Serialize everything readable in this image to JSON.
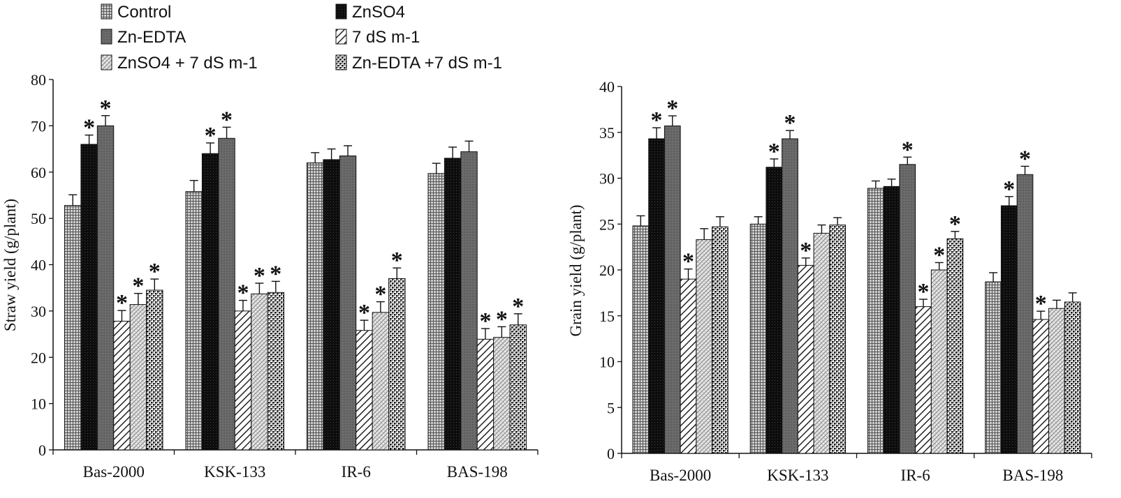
{
  "legend": {
    "items": [
      {
        "label": "Control",
        "pattern": "p-control"
      },
      {
        "label": "ZnSO4",
        "pattern": "p-znso4"
      },
      {
        "label": "Zn-EDTA",
        "pattern": "p-znedta"
      },
      {
        "label": "7 dS m-1",
        "pattern": "p-salt"
      },
      {
        "label": "ZnSO4 + 7 dS m-1",
        "pattern": "p-znso4salt"
      },
      {
        "label": "Zn-EDTA +7 dS m-1",
        "pattern": "p-znedtasalt"
      }
    ]
  },
  "significance_marker": "*",
  "chart_data": [
    {
      "type": "bar",
      "title": "",
      "xlabel": "",
      "ylabel": "Straw yield (g/plant)",
      "ylim": [
        0,
        80
      ],
      "yticks": [
        0,
        10,
        20,
        30,
        40,
        50,
        60,
        70,
        80
      ],
      "categories": [
        "Bas-2000",
        "KSK-133",
        "IR-6",
        "BAS-198"
      ],
      "series": [
        {
          "name": "Control",
          "values": [
            52.8,
            55.8,
            62.0,
            59.7
          ],
          "errors": [
            2.3,
            2.4,
            2.2,
            2.2
          ],
          "significant": [
            false,
            false,
            false,
            false
          ]
        },
        {
          "name": "ZnSO4",
          "values": [
            66.0,
            64.0,
            62.7,
            63.0
          ],
          "errors": [
            2.0,
            2.3,
            2.3,
            2.4
          ],
          "significant": [
            true,
            true,
            false,
            false
          ]
        },
        {
          "name": "Zn-EDTA",
          "values": [
            70.0,
            67.3,
            63.5,
            64.4
          ],
          "errors": [
            2.2,
            2.4,
            2.2,
            2.3
          ],
          "significant": [
            true,
            true,
            false,
            false
          ]
        },
        {
          "name": "7 dS m-1",
          "values": [
            27.8,
            30.0,
            25.8,
            23.9
          ],
          "errors": [
            2.3,
            2.3,
            2.2,
            2.3
          ],
          "significant": [
            true,
            true,
            true,
            true
          ]
        },
        {
          "name": "ZnSO4 + 7 dS m-1",
          "values": [
            31.4,
            33.7,
            29.7,
            24.3
          ],
          "errors": [
            2.4,
            2.3,
            2.3,
            2.3
          ],
          "significant": [
            true,
            true,
            true,
            true
          ]
        },
        {
          "name": "Zn-EDTA +7 dS m-1",
          "values": [
            34.5,
            34.0,
            37.0,
            27.0
          ],
          "errors": [
            2.4,
            2.4,
            2.3,
            2.4
          ],
          "significant": [
            true,
            true,
            true,
            true
          ]
        }
      ]
    },
    {
      "type": "bar",
      "title": "",
      "xlabel": "",
      "ylabel": "Grain yield (g/plant)",
      "ylim": [
        0,
        40
      ],
      "yticks": [
        0,
        5,
        10,
        15,
        20,
        25,
        30,
        35,
        40
      ],
      "categories": [
        "Bas-2000",
        "KSK-133",
        "IR-6",
        "BAS-198"
      ],
      "series": [
        {
          "name": "Control",
          "values": [
            24.8,
            25.0,
            28.9,
            18.7
          ],
          "errors": [
            1.1,
            0.8,
            0.8,
            1.0
          ],
          "significant": [
            false,
            false,
            false,
            false
          ]
        },
        {
          "name": "ZnSO4",
          "values": [
            34.3,
            31.2,
            29.1,
            27.0
          ],
          "errors": [
            1.2,
            0.9,
            0.8,
            1.0
          ],
          "significant": [
            true,
            true,
            false,
            true
          ]
        },
        {
          "name": "Zn-EDTA",
          "values": [
            35.7,
            34.3,
            31.5,
            30.4
          ],
          "errors": [
            1.1,
            0.9,
            0.8,
            0.9
          ],
          "significant": [
            true,
            true,
            true,
            true
          ]
        },
        {
          "name": "7 dS m-1",
          "values": [
            19.0,
            20.5,
            16.0,
            14.6
          ],
          "errors": [
            1.1,
            0.8,
            0.8,
            0.9
          ],
          "significant": [
            true,
            true,
            true,
            true
          ]
        },
        {
          "name": "ZnSO4 + 7 dS m-1",
          "values": [
            23.3,
            24.0,
            20.0,
            15.8
          ],
          "errors": [
            1.2,
            0.9,
            0.8,
            0.9
          ],
          "significant": [
            false,
            false,
            true,
            false
          ]
        },
        {
          "name": "Zn-EDTA +7 dS m-1",
          "values": [
            24.7,
            24.9,
            23.4,
            16.5
          ],
          "errors": [
            1.1,
            0.8,
            0.8,
            1.0
          ],
          "significant": [
            false,
            false,
            true,
            false
          ]
        }
      ]
    }
  ]
}
